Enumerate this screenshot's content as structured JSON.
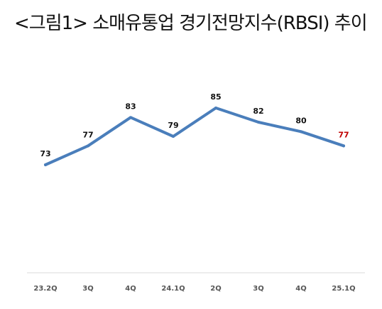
{
  "title": "<그림1> 소매유통업 경기전망지수(RBSI) 추이",
  "chart_data": {
    "type": "line",
    "categories": [
      "23.2Q",
      "3Q",
      "4Q",
      "24.1Q",
      "2Q",
      "3Q",
      "4Q",
      "25.1Q"
    ],
    "series": [
      {
        "values": [
          73,
          77,
          83,
          79,
          85,
          82,
          80,
          77
        ]
      }
    ],
    "data_labels": [
      "73",
      "77",
      "83",
      "79",
      "85",
      "82",
      "80",
      "77"
    ],
    "ylim": [
      50,
      100
    ],
    "grid": false,
    "legend": "none",
    "line_color": "#4a7ebb",
    "axis_color": "#d9d9d9",
    "highlight_last_label_color": "#c00000"
  }
}
